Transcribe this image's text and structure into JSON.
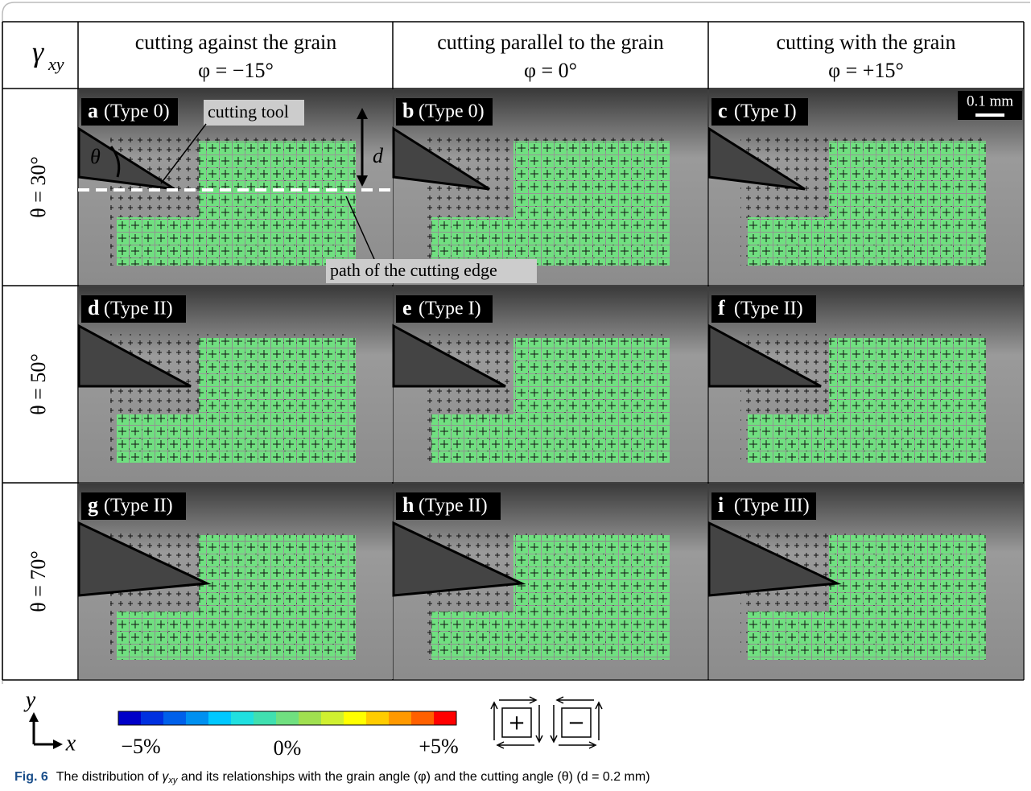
{
  "corner": {
    "symbol": "γ",
    "subscript": "xy"
  },
  "columns": [
    {
      "title": "cutting against the grain",
      "angle": "φ = −15°"
    },
    {
      "title": "cutting parallel to the grain",
      "angle": "φ = 0°"
    },
    {
      "title": "cutting with the grain",
      "angle": "φ = +15°"
    }
  ],
  "rows": [
    {
      "label": "θ = 30°",
      "panels": [
        {
          "letter": "a",
          "type": "(Type 0)"
        },
        {
          "letter": "b",
          "type": "(Type 0)"
        },
        {
          "letter": "c",
          "type": "(Type I)"
        }
      ]
    },
    {
      "label": "θ = 50°",
      "panels": [
        {
          "letter": "d",
          "type": "(Type II)"
        },
        {
          "letter": "e",
          "type": "(Type I)"
        },
        {
          "letter": "f",
          "type": "(Type II)"
        }
      ]
    },
    {
      "label": "θ = 70°",
      "panels": [
        {
          "letter": "g",
          "type": "(Type II)"
        },
        {
          "letter": "h",
          "type": "(Type II)"
        },
        {
          "letter": "i",
          "type": "(Type III)"
        }
      ]
    }
  ],
  "annotations": {
    "cutting_tool": "cutting tool",
    "d": "d",
    "theta": "θ",
    "path": "path of the cutting edge",
    "scale": "0.1 mm"
  },
  "colorbar": {
    "colors": [
      "#0000c8",
      "#0030e0",
      "#0060ea",
      "#0090f0",
      "#00c8ff",
      "#20e0e0",
      "#40e0b0",
      "#70e080",
      "#a0e050",
      "#d0f030",
      "#ffff00",
      "#ffcc00",
      "#ff9900",
      "#ff6000",
      "#ff0000"
    ],
    "labels": [
      "−5%",
      "0%",
      "+5%"
    ]
  },
  "axes": {
    "x": "x",
    "y": "y"
  },
  "legend_signs": [
    "+",
    "−"
  ],
  "caption": {
    "label": "Fig. 6",
    "parts": [
      "The distribution of ",
      "γ",
      "xy",
      " and its relationships with the grain angle (φ) and the cutting angle (θ) (d = 0.2 mm)"
    ]
  }
}
